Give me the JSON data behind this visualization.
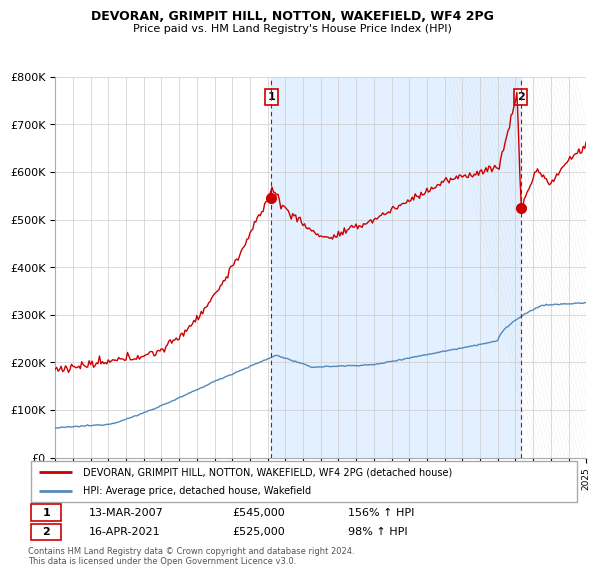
{
  "title": "DEVORAN, GRIMPIT HILL, NOTTON, WAKEFIELD, WF4 2PG",
  "subtitle": "Price paid vs. HM Land Registry's House Price Index (HPI)",
  "legend_line1": "DEVORAN, GRIMPIT HILL, NOTTON, WAKEFIELD, WF4 2PG (detached house)",
  "legend_line2": "HPI: Average price, detached house, Wakefield",
  "table_rows": [
    {
      "num": "1",
      "date": "13-MAR-2007",
      "price": "£545,000",
      "hpi": "156% ↑ HPI"
    },
    {
      "num": "2",
      "date": "16-APR-2021",
      "price": "£525,000",
      "hpi": "98% ↑ HPI"
    }
  ],
  "footnote": "Contains HM Land Registry data © Crown copyright and database right 2024.\nThis data is licensed under the Open Government Licence v3.0.",
  "red_line_color": "#cc0000",
  "blue_line_color": "#5588bb",
  "bg_color": "#ddeeff",
  "plot_bg": "#ffffff",
  "grid_color": "#cccccc",
  "vline_color": "#cc0000",
  "annotation_box_color": "#cc0000",
  "ylim": [
    0,
    800000
  ],
  "ytick_vals": [
    0,
    100000,
    200000,
    300000,
    400000,
    500000,
    600000,
    700000,
    800000
  ],
  "ytick_labels": [
    "£0",
    "£100K",
    "£200K",
    "£300K",
    "£400K",
    "£500K",
    "£600K",
    "£700K",
    "£800K"
  ],
  "sale1_x": 2007.2,
  "sale1_y": 545000,
  "sale2_x": 2021.3,
  "sale2_y": 525000,
  "xmin": 1995,
  "xmax": 2025
}
